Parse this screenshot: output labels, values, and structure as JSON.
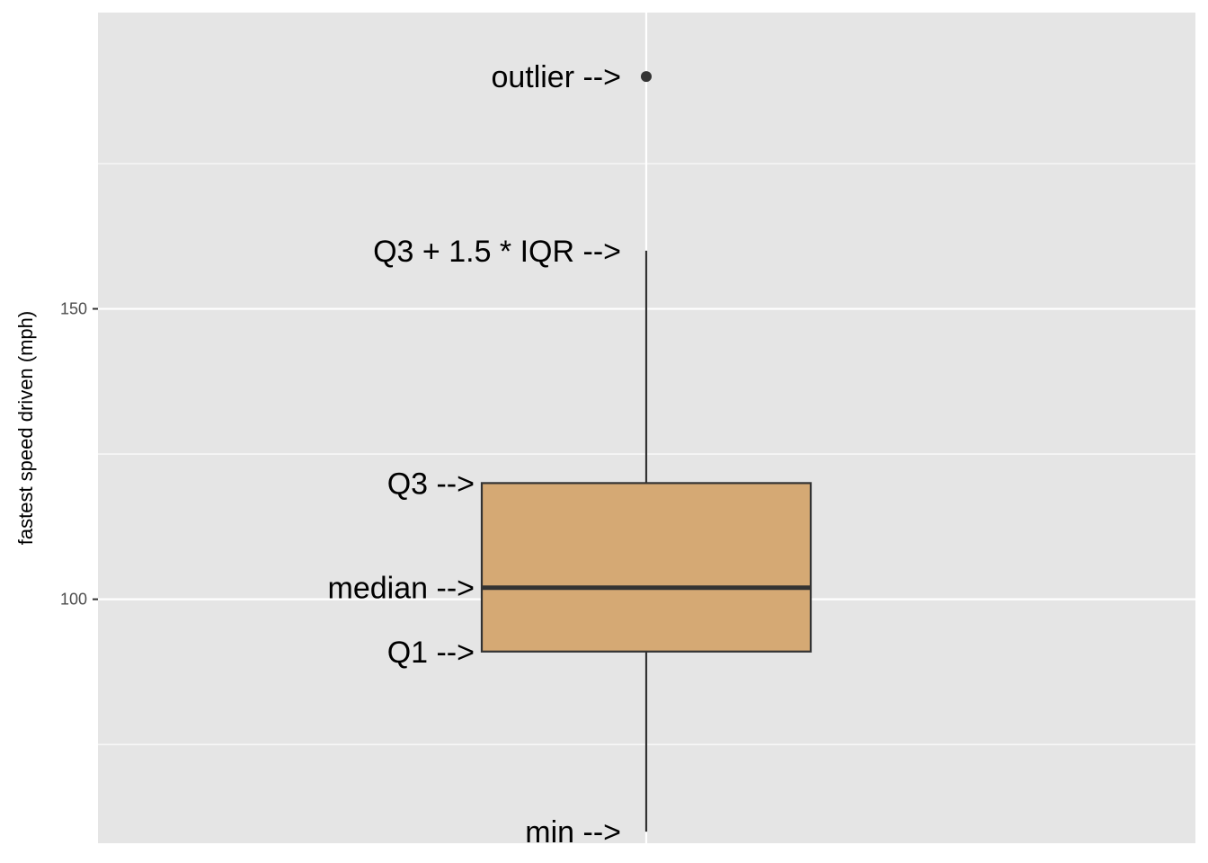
{
  "chart_data": {
    "type": "boxplot",
    "ylabel": "fastest speed driven (mph)",
    "xlabel": "",
    "ylim": [
      58,
      201
    ],
    "y_ticks": [
      {
        "value": 100,
        "label": "100"
      },
      {
        "value": 150,
        "label": "150"
      }
    ],
    "y_minor_gridlines": [
      75,
      125,
      175
    ],
    "x_grid": "single vertical gridline at box center",
    "grid": true,
    "box": {
      "min": 60,
      "q1": 91,
      "median": 102,
      "q3": 120,
      "whisker_high": 160,
      "outliers": [
        190
      ],
      "fill_color": "#d5a974",
      "line_color": "#333333"
    },
    "annotations": [
      {
        "text": "outlier -->",
        "value": 190,
        "anchor": "whisker"
      },
      {
        "text": "Q3 + 1.5 * IQR -->",
        "value": 160,
        "anchor": "whisker"
      },
      {
        "text": "Q3 -->",
        "value": 120,
        "anchor": "box"
      },
      {
        "text": "median -->",
        "value": 102,
        "anchor": "box"
      },
      {
        "text": "Q1 -->",
        "value": 91,
        "anchor": "box"
      },
      {
        "text": "min -->",
        "value": 60,
        "anchor": "whisker"
      }
    ],
    "panel_background": "#e5e5e5",
    "grid_color": "#ffffff"
  }
}
